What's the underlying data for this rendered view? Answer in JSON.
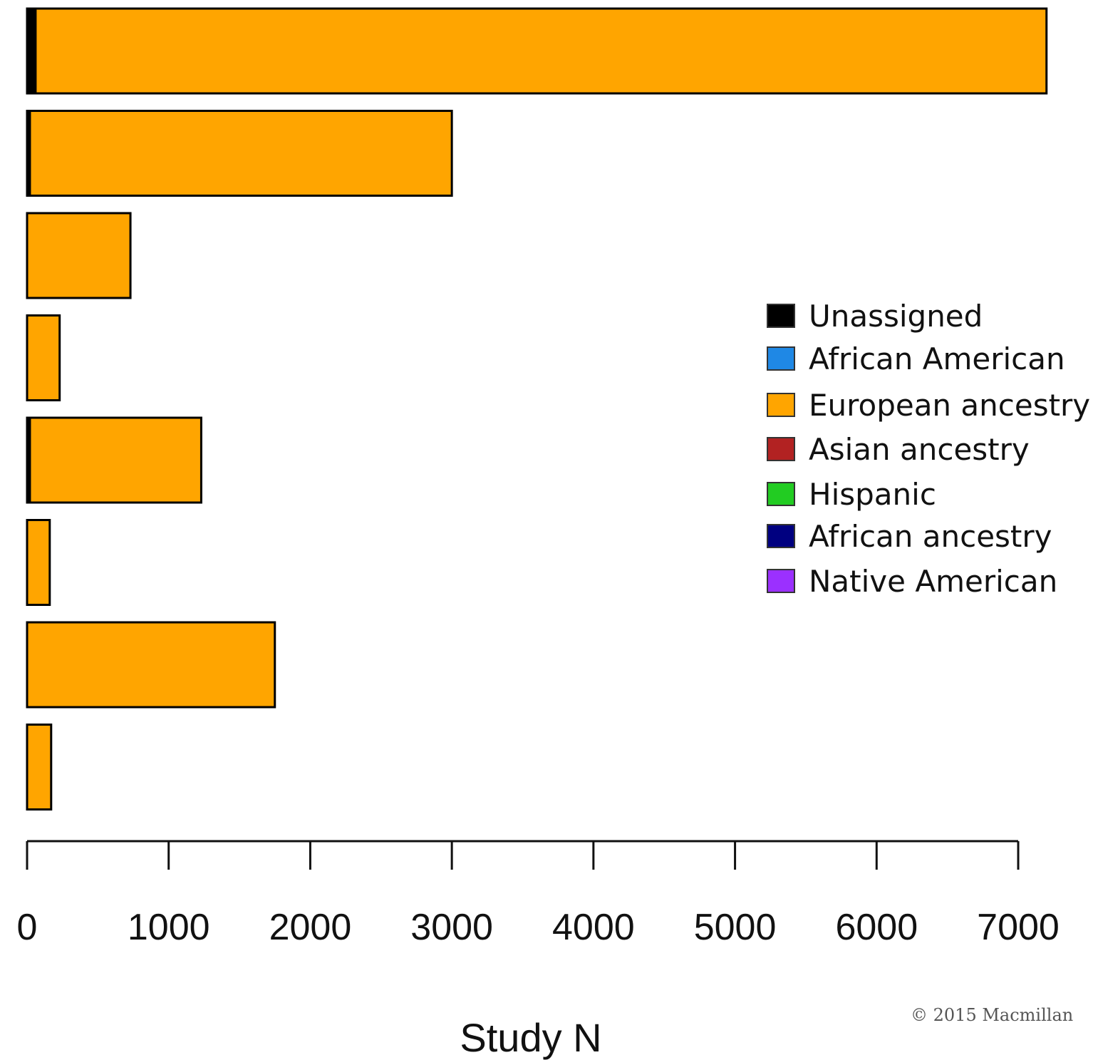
{
  "chart_data": {
    "type": "bar",
    "orientation": "horizontal",
    "stacked": true,
    "categories": [
      "",
      "",
      "",
      "",
      "",
      "",
      "",
      ""
    ],
    "series": [
      {
        "name": "Unassigned",
        "color": "#000000",
        "values": [
          60,
          20,
          0,
          0,
          20,
          0,
          0,
          0
        ]
      },
      {
        "name": "African American",
        "color": "#1f88e5",
        "values": [
          0,
          0,
          0,
          0,
          0,
          0,
          0,
          0
        ]
      },
      {
        "name": "European ancestry",
        "color": "#ffa500",
        "values": [
          7140,
          2980,
          730,
          230,
          1210,
          160,
          1750,
          170
        ]
      },
      {
        "name": "Asian ancestry",
        "color": "#b22222",
        "values": [
          0,
          0,
          0,
          0,
          0,
          0,
          0,
          0
        ]
      },
      {
        "name": "Hispanic",
        "color": "#22cc22",
        "values": [
          0,
          0,
          0,
          0,
          0,
          0,
          0,
          0
        ]
      },
      {
        "name": "African ancestry",
        "color": "#000080",
        "values": [
          0,
          0,
          0,
          0,
          0,
          0,
          0,
          0
        ]
      },
      {
        "name": "Native American",
        "color": "#9b30ff",
        "values": [
          0,
          0,
          0,
          0,
          0,
          0,
          0,
          0
        ]
      }
    ],
    "xlabel": "Study N",
    "xlim": [
      0,
      7000
    ],
    "xticks": [
      0,
      1000,
      2000,
      3000,
      4000,
      5000,
      6000,
      7000
    ],
    "grid": false,
    "legend_position": "right"
  },
  "copyright": "©   2015 Macmillan"
}
